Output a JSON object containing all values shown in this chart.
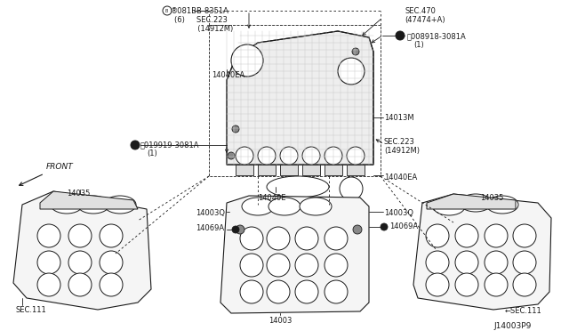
{
  "bg_color": "#ffffff",
  "dark": "#1a1a1a",
  "diagram_label": "J14003P9",
  "figsize": [
    6.4,
    3.72
  ],
  "dpi": 100,
  "labels": {
    "top_left_part1": "®081BB-8351A",
    "top_left_part2": "(6)     SEC.223",
    "top_left_part3": "          (14912M)",
    "top_right_sec": "SEC.470",
    "top_right_sec2": "(47474+A)",
    "top_right_nut": "Ⓝ008918-3081A",
    "top_right_nut2": "(1)",
    "label_14040EA_top": "14040EA",
    "label_left_nut": "Ⓝ019919-3081A",
    "label_left_nut2": "(1)",
    "label_14013M": "14013M",
    "label_sec223": "SEC.223",
    "label_sec223b": "(14912M)",
    "label_14040EA_bot": "14040EA",
    "label_14040E": "14040E",
    "label_14003Q_L": "14003Q",
    "label_14003Q_R": "14003Q",
    "label_14069A_L": "14069A",
    "label_14069A_R": "14069A",
    "label_14003": "14003",
    "label_14035_L": "14035",
    "label_sec111_L": "SEC.111",
    "label_14035_R": "14035",
    "label_sec111_R": "←SEC.111",
    "label_front": "FRONT"
  }
}
